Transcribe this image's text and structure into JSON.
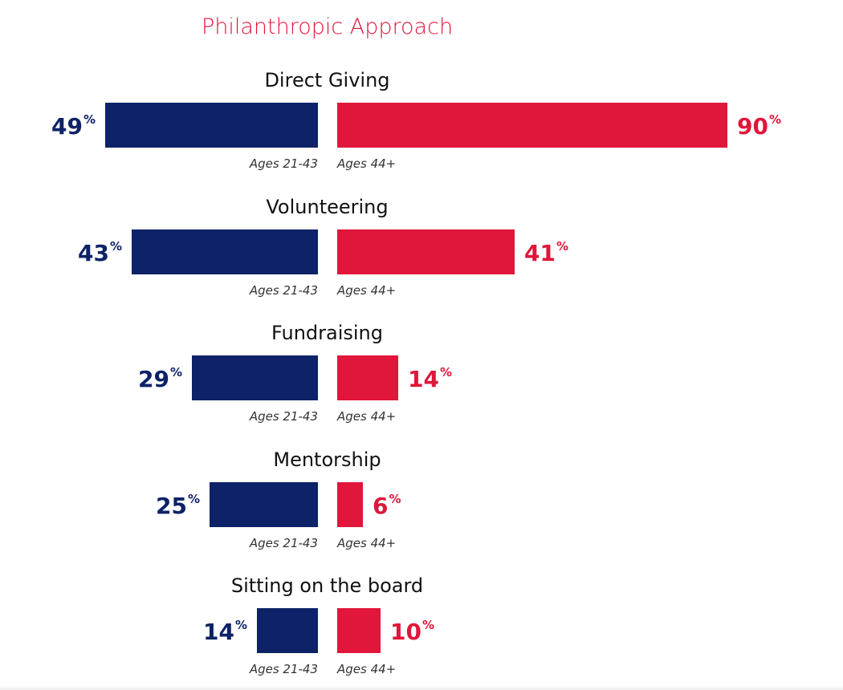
{
  "chart_data": {
    "type": "bar",
    "orientation": "horizontal-butterfly",
    "title": "Philanthropic Approach",
    "categories": [
      "Direct Giving",
      "Volunteering",
      "Fundraising",
      "Mentorship",
      "Sitting on the board"
    ],
    "series": [
      {
        "name": "Ages 21-43",
        "values": [
          49,
          43,
          29,
          25,
          14
        ],
        "color": "#0d2267",
        "side": "left"
      },
      {
        "name": "Ages 44+",
        "values": [
          90,
          41,
          14,
          6,
          10
        ],
        "color": "#e0163a",
        "side": "right"
      }
    ],
    "unit": "%",
    "xlim": [
      0,
      100
    ],
    "grid": false,
    "legend": "under each bar pair"
  }
}
